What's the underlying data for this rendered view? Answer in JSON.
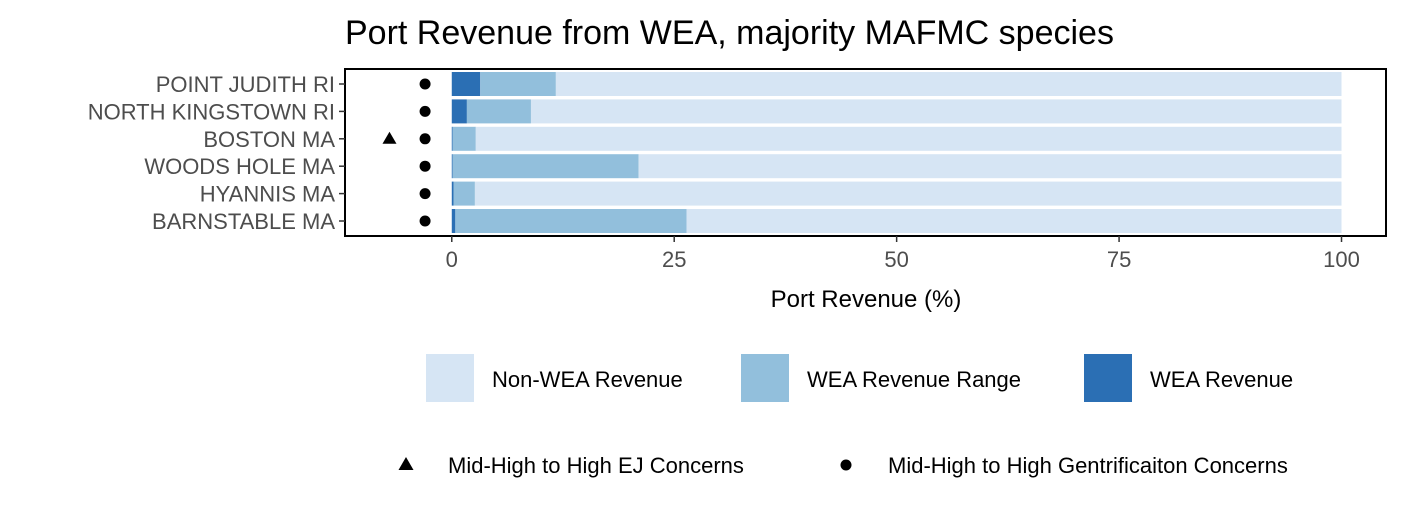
{
  "chart_data": {
    "type": "bar",
    "orientation": "horizontal",
    "stacked": true,
    "title": "Port Revenue from WEA, majority MAFMC species",
    "xlabel": "Port Revenue (%)",
    "ylabel": "",
    "xlim": [
      -12,
      105
    ],
    "x_ticks": [
      0,
      25,
      50,
      75,
      100
    ],
    "x_tick_labels": [
      "0",
      "25",
      "50",
      "75",
      "100"
    ],
    "grid": false,
    "categories": [
      "POINT JUDITH RI",
      "NORTH KINGSTOWN RI",
      "BOSTON MA",
      "WOODS HOLE MA",
      "HYANNIS MA",
      "BARNSTABLE MA"
    ],
    "series": [
      {
        "name": "WEA Revenue",
        "color": "#2b6fb4",
        "values": [
          3.2,
          1.7,
          0.1,
          0.1,
          0.2,
          0.4
        ]
      },
      {
        "name": "WEA Revenue Range",
        "color": "#92bfdc",
        "values": [
          8.5,
          7.2,
          2.6,
          20.9,
          2.4,
          26.0
        ]
      },
      {
        "name": "Non-WEA Revenue",
        "color": "#d6e5f4",
        "values": [
          88.3,
          91.1,
          97.3,
          79.0,
          97.4,
          73.6
        ]
      }
    ],
    "markers": [
      {
        "name": "Mid-High to High EJ Concerns",
        "shape": "triangle",
        "x": -7,
        "categories": [
          "BOSTON MA"
        ]
      },
      {
        "name": "Mid-High to High Gentrificaiton Concerns",
        "shape": "circle",
        "x": -3,
        "categories": [
          "POINT JUDITH RI",
          "NORTH KINGSTOWN RI",
          "BOSTON MA",
          "WOODS HOLE MA",
          "HYANNIS MA",
          "BARNSTABLE MA"
        ]
      }
    ],
    "legend_position": "bottom",
    "legend_fill": [
      {
        "label": "Non-WEA Revenue",
        "color": "#d6e5f4"
      },
      {
        "label": "WEA Revenue Range",
        "color": "#92bfdc"
      },
      {
        "label": "WEA Revenue",
        "color": "#2b6fb4"
      }
    ],
    "legend_shape": [
      {
        "label": "Mid-High to High EJ Concerns",
        "shape": "triangle"
      },
      {
        "label": "Mid-High to High Gentrificaiton Concerns",
        "shape": "circle"
      }
    ]
  }
}
